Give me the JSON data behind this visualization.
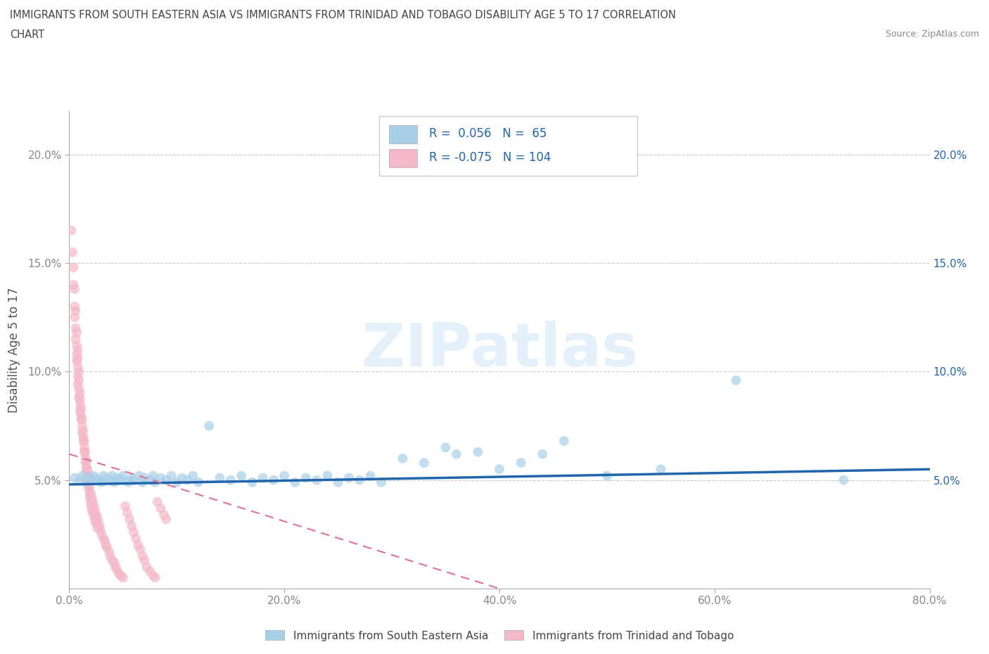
{
  "title_line1": "IMMIGRANTS FROM SOUTH EASTERN ASIA VS IMMIGRANTS FROM TRINIDAD AND TOBAGO DISABILITY AGE 5 TO 17 CORRELATION",
  "title_line2": "CHART",
  "source": "Source: ZipAtlas.com",
  "ylabel": "Disability Age 5 to 17",
  "xlim": [
    0.0,
    0.8
  ],
  "ylim": [
    0.0,
    0.22
  ],
  "R_blue": 0.056,
  "N_blue": 65,
  "R_pink": -0.075,
  "N_pink": 104,
  "legend_label_blue": "Immigrants from South Eastern Asia",
  "legend_label_pink": "Immigrants from Trinidad and Tobago",
  "watermark": "ZIPatlas",
  "blue_color": "#a8cfe8",
  "pink_color": "#f4b8c8",
  "blue_line_color": "#2166ac",
  "pink_line_color": "#e07090",
  "background_color": "#ffffff",
  "grid_color": "#cccccc",
  "title_color": "#444444",
  "legend_text_color": "#2166ac",
  "tick_color": "#888888",
  "right_tick_color": "#2166ac",
  "blue_scatter_x": [
    0.005,
    0.01,
    0.012,
    0.015,
    0.018,
    0.02,
    0.022,
    0.025,
    0.028,
    0.03,
    0.032,
    0.035,
    0.038,
    0.04,
    0.042,
    0.045,
    0.048,
    0.05,
    0.055,
    0.058,
    0.06,
    0.065,
    0.068,
    0.07,
    0.075,
    0.078,
    0.08,
    0.085,
    0.09,
    0.095,
    0.1,
    0.105,
    0.11,
    0.115,
    0.12,
    0.13,
    0.14,
    0.15,
    0.16,
    0.17,
    0.18,
    0.19,
    0.2,
    0.21,
    0.22,
    0.23,
    0.24,
    0.25,
    0.26,
    0.27,
    0.28,
    0.29,
    0.31,
    0.33,
    0.35,
    0.36,
    0.38,
    0.4,
    0.42,
    0.44,
    0.46,
    0.5,
    0.55,
    0.62,
    0.72
  ],
  "blue_scatter_y": [
    0.051,
    0.05,
    0.052,
    0.049,
    0.051,
    0.05,
    0.052,
    0.051,
    0.05,
    0.049,
    0.052,
    0.051,
    0.05,
    0.052,
    0.049,
    0.051,
    0.05,
    0.052,
    0.049,
    0.051,
    0.05,
    0.052,
    0.049,
    0.051,
    0.05,
    0.052,
    0.049,
    0.051,
    0.05,
    0.052,
    0.049,
    0.051,
    0.05,
    0.052,
    0.049,
    0.075,
    0.051,
    0.05,
    0.052,
    0.049,
    0.051,
    0.05,
    0.052,
    0.049,
    0.051,
    0.05,
    0.052,
    0.049,
    0.051,
    0.05,
    0.052,
    0.049,
    0.06,
    0.058,
    0.065,
    0.062,
    0.063,
    0.055,
    0.058,
    0.062,
    0.068,
    0.052,
    0.055,
    0.096,
    0.05
  ],
  "pink_scatter_x": [
    0.002,
    0.003,
    0.004,
    0.004,
    0.005,
    0.005,
    0.005,
    0.006,
    0.006,
    0.006,
    0.007,
    0.007,
    0.007,
    0.007,
    0.008,
    0.008,
    0.008,
    0.008,
    0.008,
    0.009,
    0.009,
    0.009,
    0.009,
    0.01,
    0.01,
    0.01,
    0.01,
    0.011,
    0.011,
    0.011,
    0.012,
    0.012,
    0.012,
    0.013,
    0.013,
    0.013,
    0.014,
    0.014,
    0.014,
    0.015,
    0.015,
    0.015,
    0.016,
    0.016,
    0.016,
    0.017,
    0.017,
    0.017,
    0.018,
    0.018,
    0.018,
    0.019,
    0.019,
    0.019,
    0.02,
    0.02,
    0.02,
    0.021,
    0.021,
    0.022,
    0.022,
    0.023,
    0.023,
    0.024,
    0.024,
    0.025,
    0.025,
    0.026,
    0.026,
    0.027,
    0.028,
    0.029,
    0.03,
    0.032,
    0.033,
    0.034,
    0.035,
    0.037,
    0.038,
    0.04,
    0.042,
    0.043,
    0.044,
    0.046,
    0.048,
    0.05,
    0.052,
    0.054,
    0.056,
    0.058,
    0.06,
    0.062,
    0.064,
    0.066,
    0.068,
    0.07,
    0.072,
    0.075,
    0.078,
    0.08,
    0.082,
    0.085,
    0.088,
    0.09
  ],
  "pink_scatter_y": [
    0.165,
    0.155,
    0.148,
    0.14,
    0.13,
    0.138,
    0.125,
    0.12,
    0.115,
    0.128,
    0.112,
    0.108,
    0.118,
    0.105,
    0.102,
    0.11,
    0.098,
    0.106,
    0.094,
    0.1,
    0.096,
    0.092,
    0.088,
    0.085,
    0.09,
    0.082,
    0.087,
    0.08,
    0.078,
    0.083,
    0.075,
    0.072,
    0.078,
    0.07,
    0.068,
    0.073,
    0.065,
    0.063,
    0.068,
    0.06,
    0.058,
    0.063,
    0.056,
    0.054,
    0.059,
    0.052,
    0.05,
    0.055,
    0.048,
    0.046,
    0.052,
    0.044,
    0.048,
    0.042,
    0.04,
    0.044,
    0.038,
    0.042,
    0.036,
    0.04,
    0.035,
    0.038,
    0.033,
    0.036,
    0.031,
    0.034,
    0.03,
    0.033,
    0.028,
    0.031,
    0.029,
    0.027,
    0.025,
    0.023,
    0.022,
    0.02,
    0.019,
    0.017,
    0.015,
    0.013,
    0.012,
    0.01,
    0.009,
    0.007,
    0.006,
    0.005,
    0.038,
    0.035,
    0.032,
    0.029,
    0.026,
    0.023,
    0.02,
    0.018,
    0.015,
    0.013,
    0.01,
    0.008,
    0.006,
    0.005,
    0.04,
    0.037,
    0.034,
    0.032
  ],
  "yticks": [
    0.05,
    0.1,
    0.15,
    0.2
  ],
  "xticks": [
    0.0,
    0.2,
    0.4,
    0.6,
    0.8
  ]
}
